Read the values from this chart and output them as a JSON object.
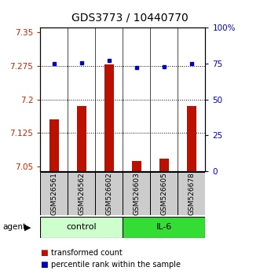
{
  "title": "GDS3773 / 10440770",
  "samples": [
    "GSM526561",
    "GSM526562",
    "GSM526602",
    "GSM526603",
    "GSM526605",
    "GSM526678"
  ],
  "bar_values": [
    7.155,
    7.185,
    7.278,
    7.063,
    7.068,
    7.185
  ],
  "percentile_values": [
    75.0,
    75.5,
    77.0,
    72.5,
    73.0,
    75.0
  ],
  "ylim_left": [
    7.04,
    7.36
  ],
  "ylim_right": [
    0,
    100
  ],
  "yticks_left": [
    7.05,
    7.125,
    7.2,
    7.275,
    7.35
  ],
  "yticks_right": [
    0,
    25,
    50,
    75,
    100
  ],
  "bar_color": "#bb1100",
  "dot_color": "#0000bb",
  "groups": [
    {
      "label": "control",
      "indices": [
        0,
        1,
        2
      ],
      "color": "#ccffcc"
    },
    {
      "label": "IL-6",
      "indices": [
        3,
        4,
        5
      ],
      "color": "#33dd33"
    }
  ],
  "agent_label": "agent",
  "legend_items": [
    {
      "color": "#bb1100",
      "label": "transformed count"
    },
    {
      "color": "#0000bb",
      "label": "percentile rank within the sample"
    }
  ],
  "grid_yticks": [
    7.125,
    7.2,
    7.275
  ],
  "title_fontsize": 10,
  "tick_fontsize": 7.5,
  "sample_fontsize": 6.5,
  "group_fontsize": 8,
  "legend_fontsize": 7
}
